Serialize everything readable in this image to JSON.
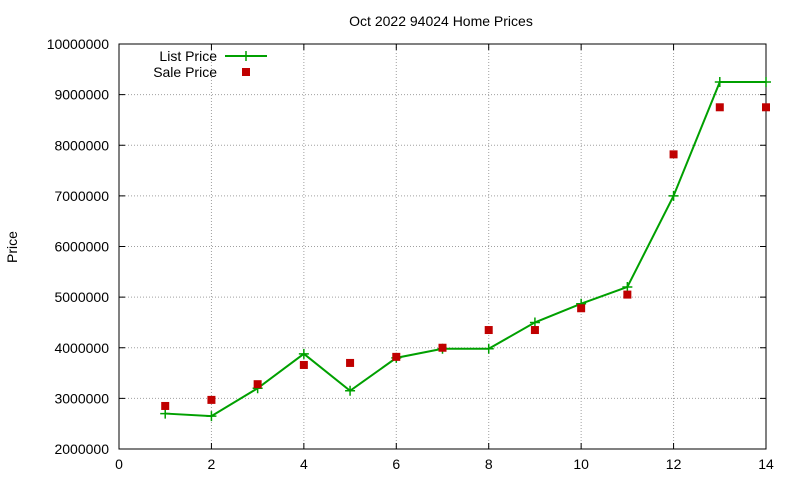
{
  "chart_data": {
    "type": "line",
    "title": "Oct 2022 94024 Home Prices",
    "xlabel": "",
    "ylabel": "Price",
    "xlim": [
      0,
      14
    ],
    "ylim": [
      2000000,
      10000000
    ],
    "xticks": [
      "0",
      "2",
      "4",
      "6",
      "8",
      "10",
      "12",
      "14"
    ],
    "yticks": [
      "2000000",
      "3000000",
      "4000000",
      "5000000",
      "6000000",
      "7000000",
      "8000000",
      "9000000",
      "10000000"
    ],
    "grid": true,
    "legend_position": "top-left",
    "series": [
      {
        "name": "List Price",
        "style": "line-with-plus-markers",
        "color": "#00a000",
        "x": [
          1,
          2,
          3,
          4,
          5,
          6,
          7,
          8,
          9,
          10,
          11,
          12,
          13,
          14
        ],
        "y": [
          2700000,
          2650000,
          3200000,
          3880000,
          3150000,
          3800000,
          3980000,
          3980000,
          4500000,
          4870000,
          5200000,
          7000000,
          9250000,
          9250000
        ]
      },
      {
        "name": "Sale Price",
        "style": "square-markers",
        "color": "#c00000",
        "x": [
          1,
          2,
          3,
          4,
          5,
          6,
          7,
          8,
          9,
          10,
          11,
          12,
          13,
          14
        ],
        "y": [
          2850000,
          2970000,
          3280000,
          3660000,
          3700000,
          3820000,
          4000000,
          4350000,
          4350000,
          4780000,
          5050000,
          7820000,
          8750000,
          8750000
        ]
      }
    ]
  }
}
